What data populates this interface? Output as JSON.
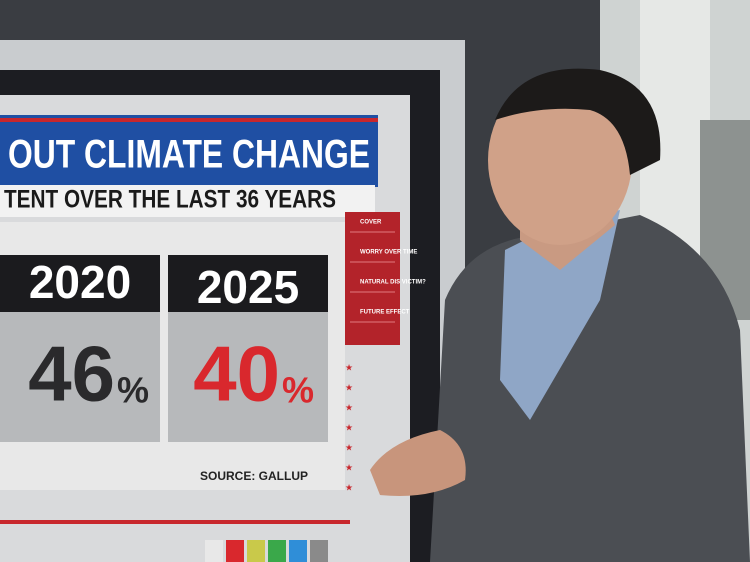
{
  "graphic": {
    "headline": "OUT CLIMATE CHANGE",
    "subhead": "TENT OVER THE LAST 36 YEARS",
    "columns": [
      {
        "year": "2020",
        "value": "46",
        "unit": "%"
      },
      {
        "year": "2025",
        "value": "40",
        "unit": "%"
      }
    ],
    "source": "SOURCE: GALLUP",
    "menu": [
      "COVER",
      "WORRY OVER TIME",
      "NATURAL DIS VICTIM?",
      "FUTURE EFFECT"
    ]
  }
}
